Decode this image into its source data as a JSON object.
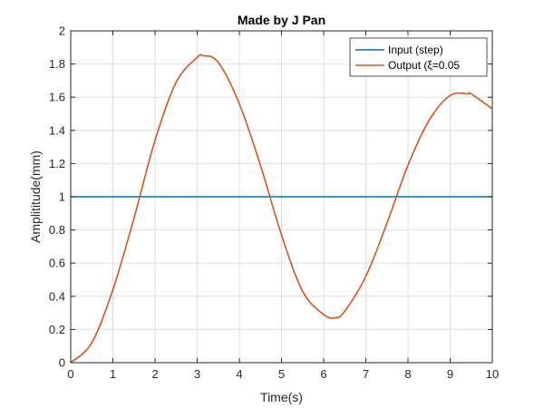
{
  "chart_data": {
    "type": "line",
    "title": "Made by J Pan",
    "xlabel": "Time(s)",
    "ylabel": "Amplititude(mm)",
    "xlim": [
      0,
      10
    ],
    "ylim": [
      0,
      2
    ],
    "xticks": [
      0,
      1,
      2,
      3,
      4,
      5,
      6,
      7,
      8,
      9,
      10
    ],
    "yticks": [
      0,
      0.2,
      0.4,
      0.6,
      0.8,
      1,
      1.2,
      1.4,
      1.6,
      1.8,
      2
    ],
    "xtick_labels": [
      "0",
      "1",
      "2",
      "3",
      "4",
      "5",
      "6",
      "7",
      "8",
      "9",
      "10"
    ],
    "ytick_labels": [
      "0",
      "0.2",
      "0.4",
      "0.6",
      "0.8",
      "1",
      "1.2",
      "1.4",
      "1.6",
      "1.8",
      "2"
    ],
    "grid": true,
    "legend_position": "top-right",
    "series": [
      {
        "name": "Input (step)",
        "color": "#0072BD",
        "x": [
          0,
          10
        ],
        "y": [
          1,
          1
        ]
      },
      {
        "name": "Output (ξ=0.05",
        "color": "#D95319",
        "x": [
          0,
          0.5,
          1,
          1.5,
          2,
          2.5,
          3,
          3.14,
          3.5,
          4,
          4.5,
          5,
          5.5,
          6,
          6.28,
          6.5,
          7,
          7.5,
          8,
          8.5,
          9,
          9.42,
          9.5,
          10
        ],
        "y": [
          0,
          0.12,
          0.44,
          0.87,
          1.34,
          1.69,
          1.84,
          1.85,
          1.81,
          1.56,
          1.19,
          0.77,
          0.43,
          0.29,
          0.27,
          0.31,
          0.52,
          0.84,
          1.19,
          1.46,
          1.61,
          1.62,
          1.62,
          1.53
        ]
      }
    ]
  }
}
